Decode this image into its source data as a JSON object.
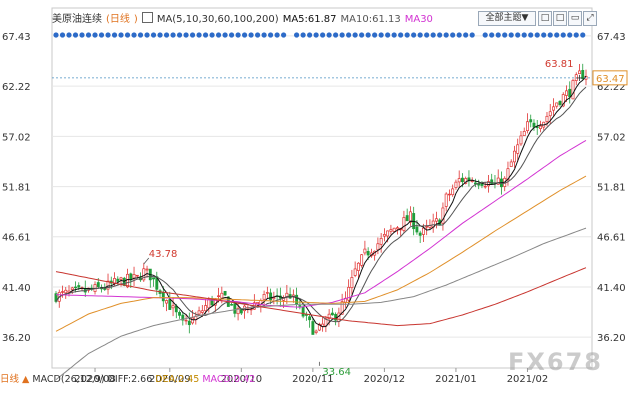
{
  "header": {
    "symbol": "美原油连续",
    "period": "日线",
    "ma_label": "MA(5,10,30,60,100,200)",
    "ma5_label": "MA5:61.87",
    "ma10_label": "MA10:61.13",
    "ma30_label": "MA30",
    "theme_button": "全部主题",
    "theme_arrow": "▼",
    "icons": [
      "square-icon",
      "square-icon",
      "square-icon",
      "fullscreen-icon"
    ]
  },
  "footer": {
    "period": "日线",
    "arrow": "▲",
    "macd_label": "MACD(26,12,9)",
    "diff_label": "DIFF:2.66",
    "dea_label": "DEA:2.45",
    "macd_value": "MACD:0.42"
  },
  "watermark": "FX678",
  "colors": {
    "up": "#e03030",
    "down": "#1f9d3a",
    "ma5": "#111111",
    "ma10": "#555555",
    "ma30": "#d233d2",
    "ma60": "#e0902a",
    "ma100": "#888888",
    "ma200": "#c8352f",
    "axis_text": "#333333",
    "grid": "#e6e6e6",
    "dot": "#2d6bc8",
    "current": "#e0902a",
    "high": "#d0392e",
    "low": "#2d9d3a"
  },
  "chart_data": {
    "type": "candlestick",
    "ylim": [
      33.0,
      66.8
    ],
    "y_ticks": [
      "67.43",
      "62.22",
      "57.02",
      "51.81",
      "46.61",
      "41.40",
      "36.20"
    ],
    "x_ticks": [
      "2020/08",
      "2020/09",
      "2020/10",
      "2020/11",
      "2020/12",
      "2021/01",
      "2021/02"
    ],
    "x_tick_positions_day": [
      12,
      35,
      57,
      79,
      101,
      123,
      145
    ],
    "annotations": {
      "high": {
        "label": "43.78",
        "value": 43.78,
        "day": 27
      },
      "low": {
        "label": "33.64",
        "value": 33.64,
        "day": 81
      },
      "recent_high": {
        "label": "63.81",
        "value": 63.81,
        "day": 161
      }
    },
    "current_price": "63.47",
    "price_anchors": [
      [
        0,
        40.5
      ],
      [
        5,
        40.8
      ],
      [
        10,
        41.0
      ],
      [
        15,
        41.4
      ],
      [
        20,
        42.0
      ],
      [
        25,
        42.3
      ],
      [
        27,
        43.0
      ],
      [
        29,
        42.6
      ],
      [
        32,
        41.0
      ],
      [
        35,
        39.5
      ],
      [
        39,
        37.5
      ],
      [
        43,
        38.2
      ],
      [
        47,
        39.8
      ],
      [
        52,
        40.3
      ],
      [
        56,
        38.6
      ],
      [
        60,
        39.5
      ],
      [
        64,
        40.3
      ],
      [
        68,
        40.2
      ],
      [
        72,
        40.6
      ],
      [
        76,
        38.5
      ],
      [
        80,
        36.6
      ],
      [
        83,
        37.8
      ],
      [
        86,
        38.5
      ],
      [
        89,
        40.0
      ],
      [
        92,
        43.0
      ],
      [
        95,
        44.8
      ],
      [
        100,
        46.2
      ],
      [
        104,
        47.5
      ],
      [
        109,
        48.6
      ],
      [
        112,
        46.8
      ],
      [
        116,
        47.8
      ],
      [
        118,
        48.4
      ],
      [
        120,
        50.6
      ],
      [
        124,
        52.5
      ],
      [
        127,
        52.6
      ],
      [
        131,
        52.4
      ],
      [
        135,
        52.0
      ],
      [
        138,
        52.4
      ],
      [
        141,
        55.2
      ],
      [
        145,
        58.1
      ],
      [
        150,
        58.7
      ],
      [
        154,
        60.6
      ],
      [
        158,
        61.7
      ],
      [
        161,
        63.4
      ],
      [
        163,
        63.5
      ]
    ],
    "ma30_anchors": [
      [
        0,
        40.6
      ],
      [
        20,
        40.4
      ],
      [
        40,
        40.2
      ],
      [
        55,
        39.9
      ],
      [
        65,
        39.5
      ],
      [
        75,
        39.3
      ],
      [
        85,
        39.8
      ],
      [
        95,
        40.8
      ],
      [
        105,
        43.0
      ],
      [
        115,
        45.4
      ],
      [
        125,
        48.0
      ],
      [
        135,
        50.3
      ],
      [
        145,
        52.6
      ],
      [
        155,
        55.0
      ],
      [
        163,
        56.6
      ]
    ],
    "ma60_anchors": [
      [
        0,
        36.8
      ],
      [
        10,
        38.6
      ],
      [
        20,
        39.7
      ],
      [
        30,
        40.3
      ],
      [
        40,
        40.3
      ],
      [
        55,
        40.1
      ],
      [
        70,
        39.9
      ],
      [
        85,
        39.7
      ],
      [
        95,
        39.9
      ],
      [
        105,
        41.1
      ],
      [
        115,
        42.9
      ],
      [
        125,
        45.0
      ],
      [
        135,
        47.2
      ],
      [
        145,
        49.3
      ],
      [
        155,
        51.4
      ],
      [
        163,
        52.9
      ]
    ],
    "ma100_anchors": [
      [
        0,
        31.8
      ],
      [
        10,
        34.5
      ],
      [
        20,
        36.3
      ],
      [
        30,
        37.4
      ],
      [
        45,
        38.5
      ],
      [
        60,
        39.3
      ],
      [
        75,
        39.6
      ],
      [
        90,
        39.6
      ],
      [
        100,
        39.8
      ],
      [
        110,
        40.4
      ],
      [
        120,
        41.6
      ],
      [
        130,
        43.0
      ],
      [
        140,
        44.4
      ],
      [
        150,
        45.9
      ],
      [
        163,
        47.5
      ]
    ],
    "ma200_anchors": [
      [
        0,
        43.0
      ],
      [
        15,
        42.0
      ],
      [
        30,
        41.0
      ],
      [
        45,
        40.3
      ],
      [
        60,
        39.5
      ],
      [
        75,
        38.7
      ],
      [
        90,
        37.9
      ],
      [
        105,
        37.4
      ],
      [
        115,
        37.6
      ],
      [
        125,
        38.5
      ],
      [
        135,
        39.6
      ],
      [
        145,
        40.9
      ],
      [
        155,
        42.3
      ],
      [
        163,
        43.4
      ]
    ]
  }
}
